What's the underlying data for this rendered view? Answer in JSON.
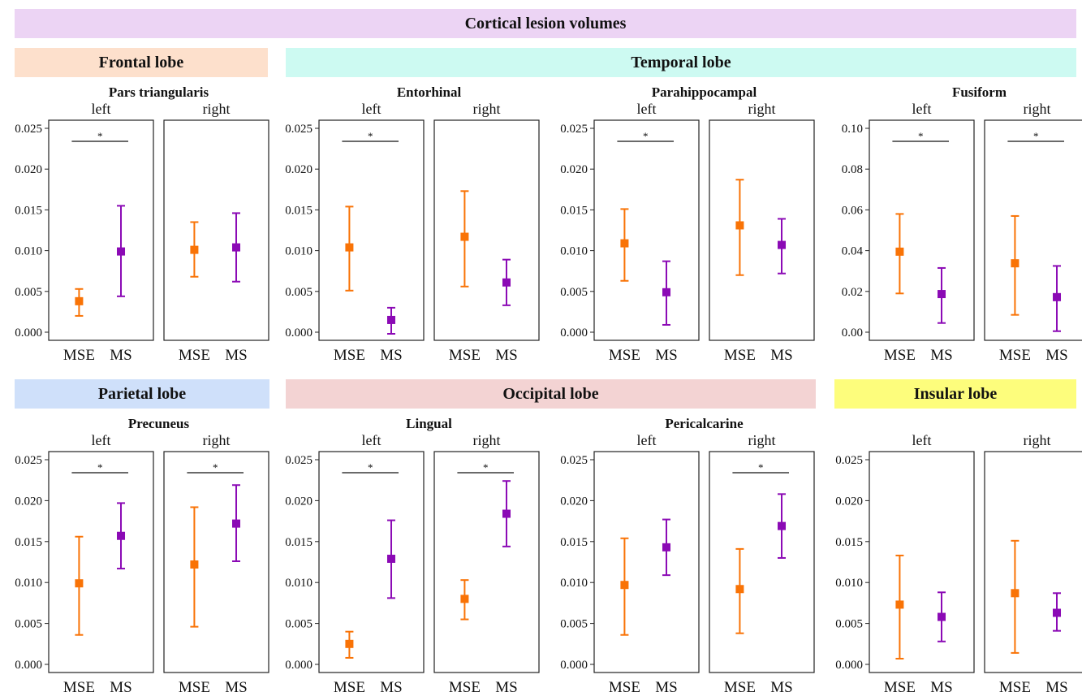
{
  "title": "Cortical lesion volumes",
  "lobes": [
    {
      "name": "Frontal lobe",
      "color": "#fde0cc"
    },
    {
      "name": "Temporal lobe",
      "color": "#cdfaf2"
    },
    {
      "name": "Parietal lobe",
      "color": "#cfe0fa"
    },
    {
      "name": "Occipital lobe",
      "color": "#f3d3d3"
    },
    {
      "name": "Insular lobe",
      "color": "#fdfd7c"
    }
  ],
  "title_color": "#ecd4f4",
  "series_colors": {
    "MSE": "#f97306",
    "MS": "#8b0ab5"
  },
  "chart_data": [
    {
      "type": "scatter",
      "region": "Pars triangularis",
      "side": "left",
      "categories": [
        "MSE",
        "MS"
      ],
      "ylim": [
        0,
        0.025
      ],
      "yticks": [
        "0.000",
        "0.005",
        "0.010",
        "0.015",
        "0.020",
        "0.025"
      ],
      "series": [
        {
          "name": "MSE",
          "value": 0.0038,
          "low": 0.002,
          "high": 0.0053
        },
        {
          "name": "MS",
          "value": 0.0099,
          "low": 0.0044,
          "high": 0.0155
        }
      ],
      "significance": "*"
    },
    {
      "type": "scatter",
      "region": "",
      "side": "right",
      "categories": [
        "MSE",
        "MS"
      ],
      "ylim": [
        0,
        0.025
      ],
      "series": [
        {
          "name": "MSE",
          "value": 0.0101,
          "low": 0.0068,
          "high": 0.0135
        },
        {
          "name": "MS",
          "value": 0.0104,
          "low": 0.0062,
          "high": 0.0146
        }
      ],
      "significance": ""
    },
    {
      "type": "scatter",
      "region": "Entorhinal",
      "side": "left",
      "categories": [
        "MSE",
        "MS"
      ],
      "ylim": [
        0,
        0.025
      ],
      "yticks": [
        "0.000",
        "0.005",
        "0.010",
        "0.015",
        "0.020",
        "0.025"
      ],
      "series": [
        {
          "name": "MSE",
          "value": 0.0104,
          "low": 0.0051,
          "high": 0.0154
        },
        {
          "name": "MS",
          "value": 0.0015,
          "low": -0.0002,
          "high": 0.003
        }
      ],
      "significance": "*"
    },
    {
      "type": "scatter",
      "region": "",
      "side": "right",
      "categories": [
        "MSE",
        "MS"
      ],
      "ylim": [
        0,
        0.025
      ],
      "series": [
        {
          "name": "MSE",
          "value": 0.0117,
          "low": 0.0056,
          "high": 0.0173
        },
        {
          "name": "MS",
          "value": 0.0061,
          "low": 0.0033,
          "high": 0.0089
        }
      ],
      "significance": ""
    },
    {
      "type": "scatter",
      "region": "Parahippocampal",
      "side": "left",
      "categories": [
        "MSE",
        "MS"
      ],
      "ylim": [
        0,
        0.025
      ],
      "yticks": [
        "0.000",
        "0.005",
        "0.010",
        "0.015",
        "0.020",
        "0.025"
      ],
      "series": [
        {
          "name": "MSE",
          "value": 0.0109,
          "low": 0.0063,
          "high": 0.0151
        },
        {
          "name": "MS",
          "value": 0.0049,
          "low": 0.0009,
          "high": 0.0087
        }
      ],
      "significance": "*"
    },
    {
      "type": "scatter",
      "region": "",
      "side": "right",
      "categories": [
        "MSE",
        "MS"
      ],
      "ylim": [
        0,
        0.025
      ],
      "series": [
        {
          "name": "MSE",
          "value": 0.0131,
          "low": 0.007,
          "high": 0.0187
        },
        {
          "name": "MS",
          "value": 0.0107,
          "low": 0.0072,
          "high": 0.0139
        }
      ],
      "significance": ""
    },
    {
      "type": "scatter",
      "region": "Fusiform",
      "side": "left",
      "categories": [
        "MSE",
        "MS"
      ],
      "ylim": [
        0,
        0.1
      ],
      "yticks": [
        "0.00",
        "0.02",
        "0.04",
        "0.06",
        "0.08",
        "0.10"
      ],
      "series": [
        {
          "name": "MSE",
          "value": 0.0395,
          "low": 0.019,
          "high": 0.058
        },
        {
          "name": "MS",
          "value": 0.0187,
          "low": 0.0045,
          "high": 0.0315
        }
      ],
      "significance": "*"
    },
    {
      "type": "scatter",
      "region": "",
      "side": "right",
      "categories": [
        "MSE",
        "MS"
      ],
      "ylim": [
        0,
        0.1
      ],
      "series": [
        {
          "name": "MSE",
          "value": 0.0338,
          "low": 0.0085,
          "high": 0.057
        },
        {
          "name": "MS",
          "value": 0.0172,
          "low": 0.0005,
          "high": 0.0325
        }
      ],
      "significance": "*"
    },
    {
      "type": "scatter",
      "region": "Precuneus",
      "side": "left",
      "categories": [
        "MSE",
        "MS"
      ],
      "ylim": [
        0,
        0.025
      ],
      "yticks": [
        "0.000",
        "0.005",
        "0.010",
        "0.015",
        "0.020",
        "0.025"
      ],
      "series": [
        {
          "name": "MSE",
          "value": 0.0099,
          "low": 0.0036,
          "high": 0.0156
        },
        {
          "name": "MS",
          "value": 0.0157,
          "low": 0.0117,
          "high": 0.0197
        }
      ],
      "significance": "*"
    },
    {
      "type": "scatter",
      "region": "",
      "side": "right",
      "categories": [
        "MSE",
        "MS"
      ],
      "ylim": [
        0,
        0.025
      ],
      "series": [
        {
          "name": "MSE",
          "value": 0.0122,
          "low": 0.0046,
          "high": 0.0192
        },
        {
          "name": "MS",
          "value": 0.0172,
          "low": 0.0126,
          "high": 0.0219
        }
      ],
      "significance": "*"
    },
    {
      "type": "scatter",
      "region": "Lingual",
      "side": "left",
      "categories": [
        "MSE",
        "MS"
      ],
      "ylim": [
        0,
        0.025
      ],
      "yticks": [
        "0.000",
        "0.005",
        "0.010",
        "0.015",
        "0.020",
        "0.025"
      ],
      "series": [
        {
          "name": "MSE",
          "value": 0.0025,
          "low": 0.0008,
          "high": 0.004
        },
        {
          "name": "MS",
          "value": 0.0129,
          "low": 0.0081,
          "high": 0.0176
        }
      ],
      "significance": "*"
    },
    {
      "type": "scatter",
      "region": "",
      "side": "right",
      "categories": [
        "MSE",
        "MS"
      ],
      "ylim": [
        0,
        0.025
      ],
      "series": [
        {
          "name": "MSE",
          "value": 0.008,
          "low": 0.0055,
          "high": 0.0103
        },
        {
          "name": "MS",
          "value": 0.0184,
          "low": 0.0144,
          "high": 0.0224
        }
      ],
      "significance": "*"
    },
    {
      "type": "scatter",
      "region": "Pericalcarine",
      "side": "left",
      "categories": [
        "MSE",
        "MS"
      ],
      "ylim": [
        0,
        0.025
      ],
      "yticks": [
        "0.000",
        "0.005",
        "0.010",
        "0.015",
        "0.020",
        "0.025"
      ],
      "series": [
        {
          "name": "MSE",
          "value": 0.0097,
          "low": 0.0036,
          "high": 0.0154
        },
        {
          "name": "MS",
          "value": 0.0143,
          "low": 0.0109,
          "high": 0.0177
        }
      ],
      "significance": ""
    },
    {
      "type": "scatter",
      "region": "",
      "side": "right",
      "categories": [
        "MSE",
        "MS"
      ],
      "ylim": [
        0,
        0.025
      ],
      "series": [
        {
          "name": "MSE",
          "value": 0.0092,
          "low": 0.0038,
          "high": 0.0141
        },
        {
          "name": "MS",
          "value": 0.0169,
          "low": 0.013,
          "high": 0.0208
        }
      ],
      "significance": "*"
    },
    {
      "type": "scatter",
      "region": "",
      "side": "left",
      "categories": [
        "MSE",
        "MS"
      ],
      "ylim": [
        0,
        0.025
      ],
      "yticks": [
        "0.000",
        "0.005",
        "0.010",
        "0.015",
        "0.020",
        "0.025"
      ],
      "series": [
        {
          "name": "MSE",
          "value": 0.0073,
          "low": 0.0007,
          "high": 0.0133
        },
        {
          "name": "MS",
          "value": 0.0058,
          "low": 0.0028,
          "high": 0.0088
        }
      ],
      "significance": ""
    },
    {
      "type": "scatter",
      "region": "",
      "side": "right",
      "categories": [
        "MSE",
        "MS"
      ],
      "ylim": [
        0,
        0.025
      ],
      "series": [
        {
          "name": "MSE",
          "value": 0.0087,
          "low": 0.0014,
          "high": 0.0151
        },
        {
          "name": "MS",
          "value": 0.0063,
          "low": 0.0041,
          "high": 0.0087
        }
      ],
      "significance": ""
    }
  ]
}
